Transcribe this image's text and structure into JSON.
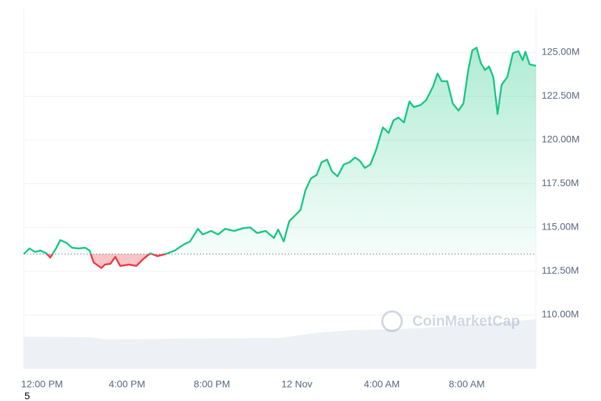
{
  "chart_data": {
    "type": "line",
    "watermark": "CoinMarketCap",
    "footnote": "5",
    "x": [
      -0.86,
      -0.59,
      -0.33,
      -0.07,
      0.2,
      0.39,
      0.66,
      0.86,
      1.15,
      1.41,
      1.71,
      2.04,
      2.24,
      2.43,
      2.8,
      2.96,
      3.22,
      3.45,
      3.68,
      4.11,
      4.44,
      4.77,
      5.1,
      5.43,
      5.82,
      6.25,
      6.64,
      6.97,
      7.34,
      7.57,
      7.96,
      8.29,
      8.62,
      9.05,
      9.47,
      9.8,
      10.13,
      10.53,
      10.92,
      11.12,
      11.38,
      11.64,
      11.91,
      12.17,
      12.4,
      12.66,
      12.93,
      13.16,
      13.42,
      13.65,
      13.91,
      14.21,
      14.47,
      14.74,
      14.97,
      15.2,
      15.46,
      15.72,
      16.05,
      16.32,
      16.55,
      16.78,
      17.04,
      17.3,
      17.5,
      17.83,
      18.09,
      18.42,
      18.62,
      18.82,
      19.08,
      19.34,
      19.61,
      19.84,
      20.07,
      20.26,
      20.46,
      20.66,
      20.86,
      21.05,
      21.25,
      21.45,
      21.64,
      21.91,
      22.17,
      22.43,
      22.63,
      22.76,
      22.96,
      23.26
    ],
    "series": [
      {
        "color_up": "#16c784",
        "color_down": "#ea3943",
        "values": [
          113.48,
          113.8,
          113.6,
          113.68,
          113.52,
          113.28,
          113.8,
          114.28,
          114.12,
          113.84,
          113.8,
          113.84,
          113.68,
          113,
          112.68,
          112.88,
          112.92,
          113.32,
          112.8,
          112.88,
          112.8,
          113.2,
          113.52,
          113.36,
          113.48,
          113.68,
          114,
          114.2,
          114.92,
          114.6,
          114.8,
          114.6,
          114.92,
          114.8,
          114.96,
          115,
          114.68,
          114.8,
          114.4,
          114.88,
          114.2,
          115.36,
          115.68,
          116,
          117.12,
          117.8,
          118,
          118.72,
          118.88,
          118.2,
          117.92,
          118.6,
          118.72,
          119,
          118.8,
          118.4,
          118.6,
          119.4,
          120.72,
          120.4,
          121.12,
          121.28,
          121,
          122.2,
          121.88,
          122,
          122.28,
          123.08,
          123.8,
          123.36,
          123.36,
          122.08,
          121.68,
          122.08,
          124,
          125.12,
          125.28,
          124.4,
          124,
          124.2,
          123.6,
          121.48,
          123.16,
          123.6,
          124.96,
          125.08,
          124.56,
          125.04,
          124.32,
          124.24
        ]
      }
    ],
    "xlim": [
      -0.86,
      23.26
    ],
    "xticks": [
      {
        "value": 0,
        "label": "12:00 PM"
      },
      {
        "value": 4,
        "label": "4:00 PM"
      },
      {
        "value": 8,
        "label": "8:00 PM"
      },
      {
        "value": 12,
        "label": "12 Nov"
      },
      {
        "value": 16,
        "label": "4:00 AM"
      },
      {
        "value": 20,
        "label": "8:00 AM"
      }
    ],
    "ylim": [
      106.92,
      127.48
    ],
    "yticks": [
      {
        "value": 110,
        "label": "110.00M"
      },
      {
        "value": 112.5,
        "label": "112.50M"
      },
      {
        "value": 115,
        "label": "115.00M"
      },
      {
        "value": 117.5,
        "label": "117.50M"
      },
      {
        "value": 120,
        "label": "120.00M"
      },
      {
        "value": 122.5,
        "label": "122.50M"
      },
      {
        "value": 125,
        "label": "125.00M"
      }
    ],
    "grid": true
  }
}
